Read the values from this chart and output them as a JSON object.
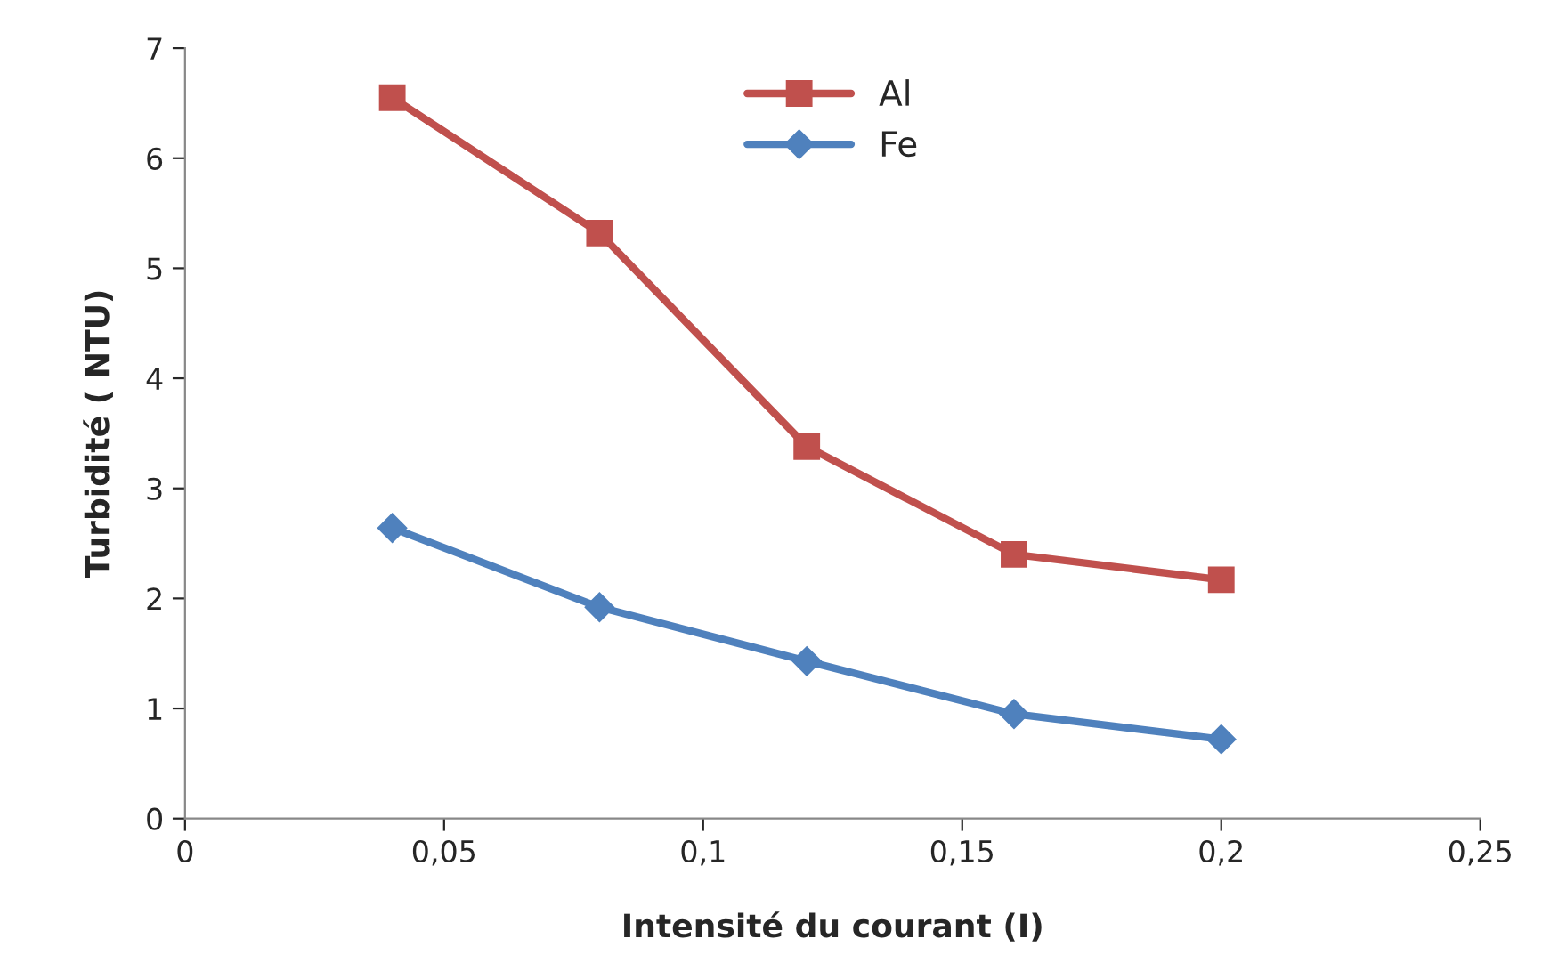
{
  "chart_data": {
    "type": "line",
    "xlabel": "Intensité du courant (I)",
    "ylabel": "Turbidité ( NTU)",
    "x": [
      0.04,
      0.08,
      0.12,
      0.16,
      0.2
    ],
    "series": [
      {
        "name": "Al",
        "color": "#c0504d",
        "marker": "square",
        "values": [
          6.55,
          5.32,
          3.38,
          2.4,
          2.17
        ]
      },
      {
        "name": "Fe",
        "color": "#4f81bd",
        "marker": "diamond",
        "values": [
          2.64,
          1.92,
          1.43,
          0.95,
          0.72
        ]
      }
    ],
    "xlim": [
      0,
      0.25
    ],
    "xticks": [
      {
        "value": 0,
        "label": "0"
      },
      {
        "value": 0.05,
        "label": "0,05"
      },
      {
        "value": 0.1,
        "label": "0,1"
      },
      {
        "value": 0.15,
        "label": "0,15"
      },
      {
        "value": 0.2,
        "label": "0,2"
      },
      {
        "value": 0.25,
        "label": "0,25"
      }
    ],
    "ylim": [
      0,
      7
    ],
    "yticks": [
      0,
      1,
      2,
      3,
      4,
      5,
      6,
      7
    ],
    "grid": false,
    "legend": "top",
    "line_style": "solid"
  }
}
